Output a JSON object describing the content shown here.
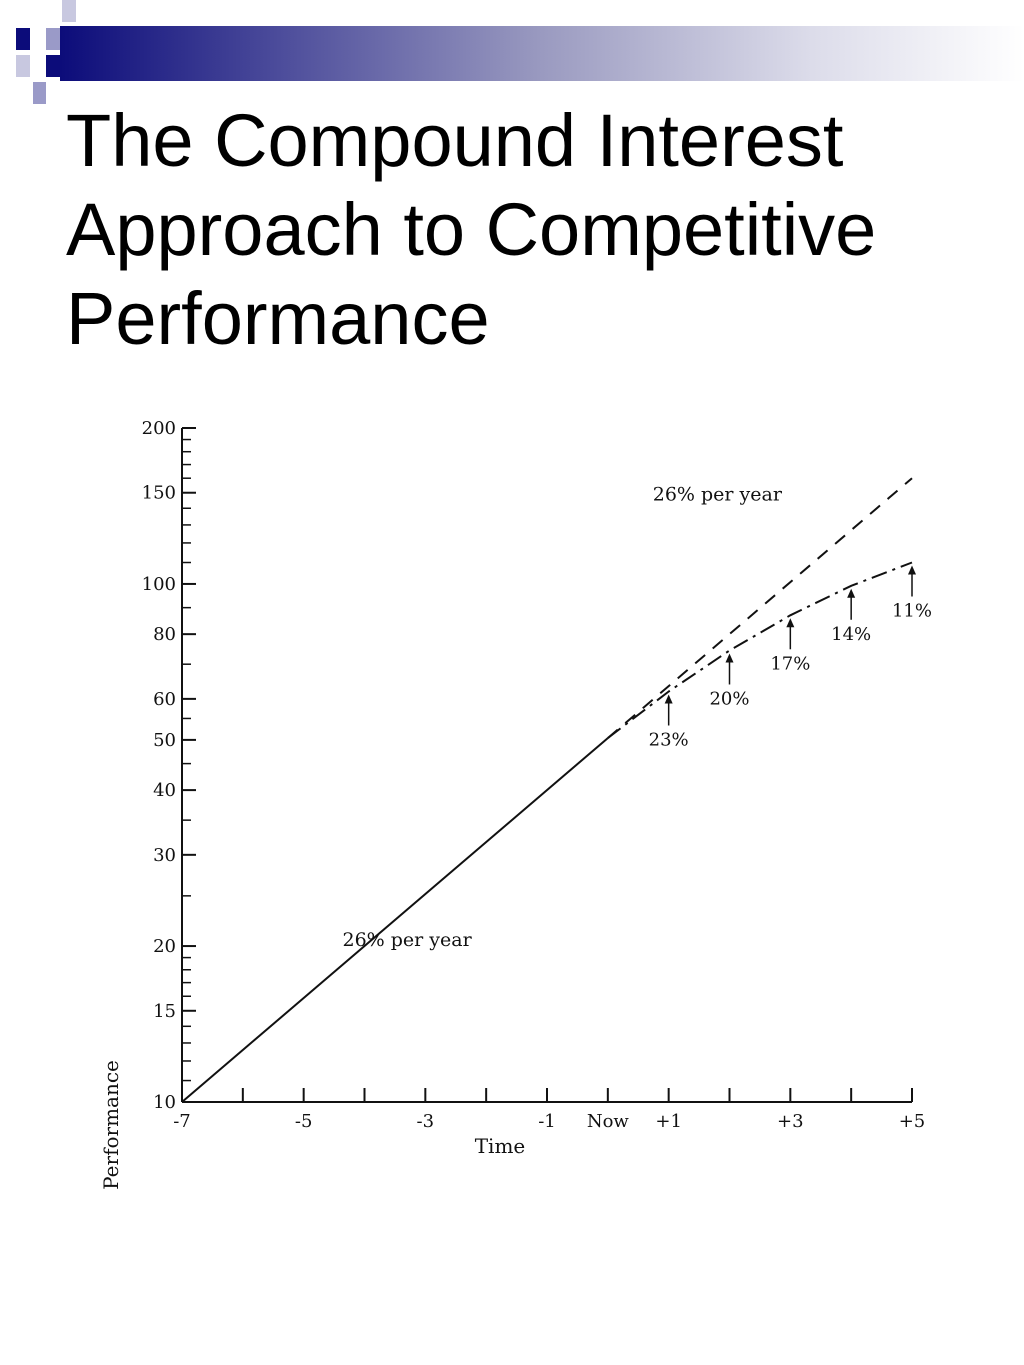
{
  "slide": {
    "title_lines": [
      "The Compound Interest",
      "Approach to Competitive",
      "Performance"
    ],
    "accent_colors": [
      "#0c0c7a",
      "#9a9ac8",
      "#ffffff"
    ]
  },
  "chart_data": {
    "type": "line",
    "title": "",
    "xlabel": "Time",
    "ylabel": "Performance",
    "x_ticks": [
      "-7",
      "-5",
      "-3",
      "-1",
      "Now",
      "+1",
      "+3",
      "+5"
    ],
    "x_tick_values": [
      -7,
      -5,
      -3,
      -1,
      0,
      1,
      3,
      5
    ],
    "x_range": [
      -7,
      5
    ],
    "y_scale": "log",
    "y_ticks": [
      10,
      15,
      20,
      30,
      40,
      50,
      60,
      80,
      100,
      150,
      200
    ],
    "y_tick_labels": [
      "10",
      "15",
      "20",
      "30",
      "40",
      "50",
      "60",
      "80",
      "100",
      "150",
      "200"
    ],
    "ylim": [
      10,
      200
    ],
    "grid": false,
    "annotations": [
      "26% per year",
      "26% per year",
      "23%",
      "20%",
      "17%",
      "14%",
      "11%"
    ],
    "series": [
      {
        "style": "solid",
        "x": [
          -7,
          0
        ],
        "y": [
          10,
          50.4
        ]
      },
      {
        "style": "dashed",
        "x": [
          0,
          5
        ],
        "y": [
          50.4,
          160
        ]
      },
      {
        "style": "dash-dot",
        "x": [
          0,
          1,
          2,
          3,
          4,
          5
        ],
        "y": [
          50.4,
          62,
          74.4,
          87,
          99.2,
          110
        ]
      }
    ],
    "growth_rates": [
      {
        "label": "23%",
        "x": 1
      },
      {
        "label": "20%",
        "x": 2
      },
      {
        "label": "17%",
        "x": 3
      },
      {
        "label": "14%",
        "x": 4
      },
      {
        "label": "11%",
        "x": 5
      }
    ]
  }
}
